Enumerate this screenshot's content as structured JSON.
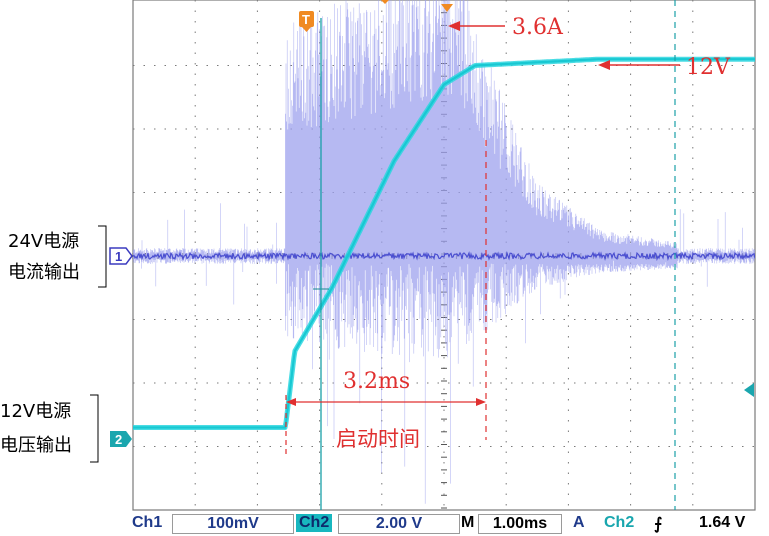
{
  "chart_data": {
    "type": "line",
    "instrument": "oscilloscope",
    "grid": true,
    "x_divisions": 10,
    "y_divisions": 8,
    "time_per_div_ms": 1.0,
    "series": [
      {
        "channel": "Ch1",
        "scale": "100mV",
        "color": "#7b7fe6",
        "description_points_ms_div": [
          [
            0,
            0
          ],
          [
            2.45,
            0
          ],
          [
            2.45,
            3.5
          ],
          [
            5.2,
            4.6
          ],
          [
            5.6,
            3.2
          ],
          [
            6.5,
            1.1
          ],
          [
            7.5,
            0.4
          ],
          [
            10,
            0
          ]
        ]
      },
      {
        "channel": "Ch2",
        "scale": "2.00 V",
        "color": "#1fd5e0",
        "description_points_ms_div": [
          [
            0,
            -2.7
          ],
          [
            2.45,
            -2.7
          ],
          [
            2.6,
            -1.5
          ],
          [
            3.2,
            -0.5
          ],
          [
            4.2,
            1.5
          ],
          [
            5.0,
            2.7
          ],
          [
            5.5,
            3.0
          ],
          [
            7.5,
            3.1
          ],
          [
            10,
            3.1
          ]
        ]
      }
    ],
    "annotations": {
      "peak_current": "3.6A",
      "output_voltage": "12V",
      "startup_time": "3.2ms",
      "startup_label": "启动时间",
      "ch1_label_line1": "24V电源",
      "ch1_label_line2": "电流输出",
      "ch2_label_line1": "12V电源",
      "ch2_label_line2": "电压输出"
    },
    "markers": {
      "ch1": "1",
      "ch2": "2",
      "trigger": "T"
    }
  },
  "status_bar": {
    "ch1": "Ch1",
    "ch1_scale": "100mV",
    "ch2": "Ch2",
    "ch2_scale": "2.00 V",
    "m": "M",
    "timebase": "1.00ms",
    "trigger_mode": "A",
    "trigger_ch": "Ch2",
    "trigger_edge": "⨍",
    "trigger_level": "1.64 V"
  }
}
